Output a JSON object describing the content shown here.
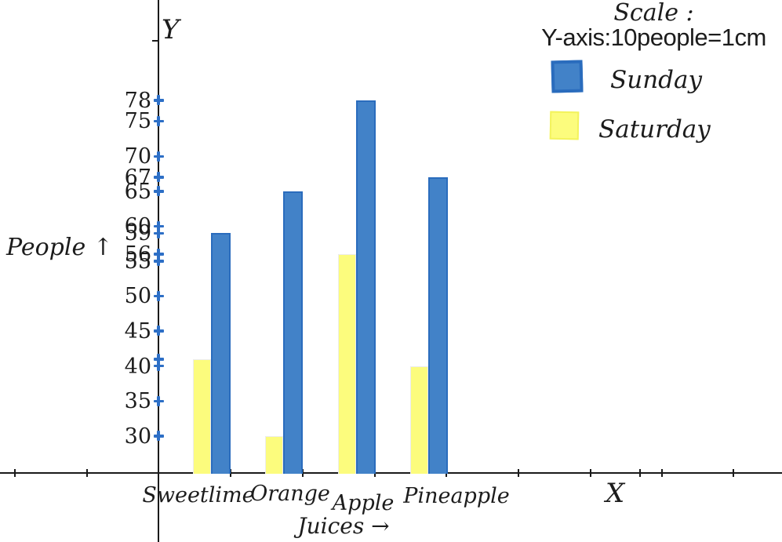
{
  "title": {
    "scale_label": "Scale :",
    "scale_value": "Y-axis:10people=1cm"
  },
  "axes": {
    "x_letter": "X",
    "y_letter": "Y",
    "x_title": "Juices →",
    "y_title": "People ↑"
  },
  "legend": [
    {
      "label": "Sunday",
      "color": "#4282c8",
      "border": "#2a6cbd"
    },
    {
      "label": "Saturday",
      "color": "#fcfc7d",
      "border": "#f3f35e"
    }
  ],
  "chart_data": {
    "type": "bar",
    "title": "Scale : Y-axis:10people=1cm",
    "scale_note": "Y-axis:10people=1cm",
    "xlabel": "Juices →",
    "ylabel": "People ↑",
    "categories": [
      "Sweetlime",
      "Orange",
      "Apple",
      "Pineapple"
    ],
    "series": [
      {
        "name": "Saturday",
        "color": "#fcfc7d",
        "values": [
          41,
          30,
          56,
          40
        ]
      },
      {
        "name": "Sunday",
        "color": "#4282c8",
        "values": [
          59,
          65,
          78,
          67
        ]
      }
    ],
    "y_tick_labels": [
      30,
      35,
      40,
      45,
      50,
      55,
      56,
      59,
      60,
      65,
      67,
      70,
      75,
      78
    ],
    "y_tick_marks": [
      30,
      35,
      40,
      41,
      45,
      50,
      55,
      56,
      59,
      60,
      65,
      67,
      70,
      75,
      78
    ],
    "ylim": [
      25,
      90
    ],
    "grid": false,
    "legend_position": "top-right"
  }
}
